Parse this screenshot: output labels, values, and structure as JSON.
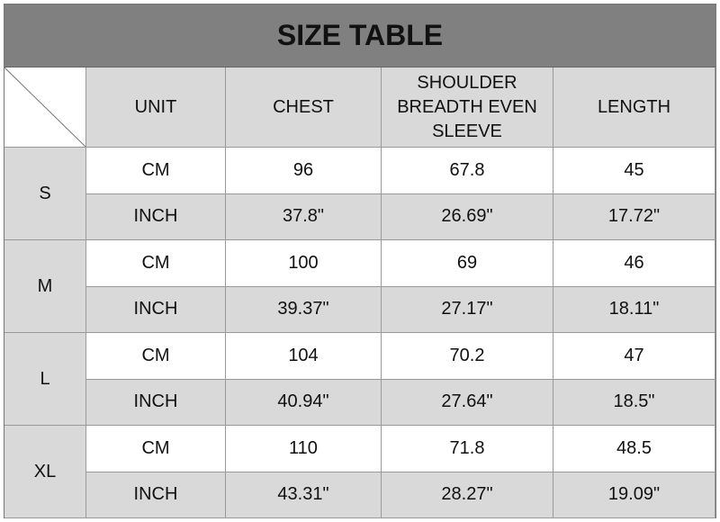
{
  "title": "SIZE TABLE",
  "headers": [
    "UNIT",
    "CHEST",
    "SHOULDER BREADTH EVEN SLEEVE",
    "LENGTH"
  ],
  "rows": [
    {
      "size": "S",
      "cm": [
        "CM",
        "96",
        "67.8",
        "45"
      ],
      "inch": [
        "INCH",
        "37.8\"",
        "26.69\"",
        "17.72\""
      ]
    },
    {
      "size": "M",
      "cm": [
        "CM",
        "100",
        "69",
        "46"
      ],
      "inch": [
        "INCH",
        "39.37\"",
        "27.17\"",
        "18.11\""
      ]
    },
    {
      "size": "L",
      "cm": [
        "CM",
        "104",
        "70.2",
        "47"
      ],
      "inch": [
        "INCH",
        "40.94\"",
        "27.64\"",
        "18.5\""
      ]
    },
    {
      "size": "XL",
      "cm": [
        "CM",
        "110",
        "71.8",
        "48.5"
      ],
      "inch": [
        "INCH",
        "43.31\"",
        "28.27\"",
        "19.09\""
      ]
    }
  ],
  "colors": {
    "title_bg": "#808080",
    "gray_cell": "#d9d9d9",
    "white_cell": "#ffffff"
  }
}
